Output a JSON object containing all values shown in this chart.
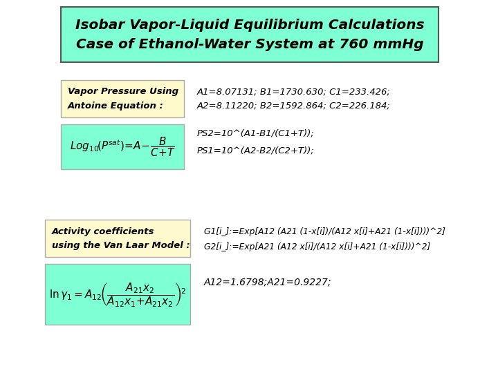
{
  "title_line1": "Isobar Vapor-Liquid Equilibrium Calculations",
  "title_line2": "Case of Ethanol-Water System at 760 mmHg",
  "title_bg": "#7FFFD4",
  "title_fontsize": 14.5,
  "vp_label1": "Vapor Pressure Using",
  "vp_label2": "Antoine Equation :",
  "vp_label_bg": "#FFFACD",
  "antoine_eq_bg": "#7FFFD4",
  "antoine_params1": "A1=8.07131; B1=1730.630; C1=233.426;",
  "antoine_params2": "A2=8.11220; B2=1592.864; C2=226.184;",
  "ps_eq1": "PS2=10^(A1-B1/(C1+T));",
  "ps_eq2": "PS1=10^(A2-B2/(C2+T));",
  "activity_label1": "Activity coefficients",
  "activity_label2": "using the Van Laar Model :",
  "activity_label_bg": "#FFFACD",
  "vanlaar_eq_bg": "#7FFFD4",
  "g1_eq": "G1[i_]:=Exp[A12 (A21 (1-x[i])/(A12 x[i]+A21 (1-x[i])))^2]",
  "g2_eq": "G2[i_]:=Exp[A21 (A12 x[i]/(A12 x[i]+A21 (1-x[i])))^2]",
  "a12_a21": "A12=1.6798;A21=0.9227;",
  "bg_color": "#FFFFFF"
}
